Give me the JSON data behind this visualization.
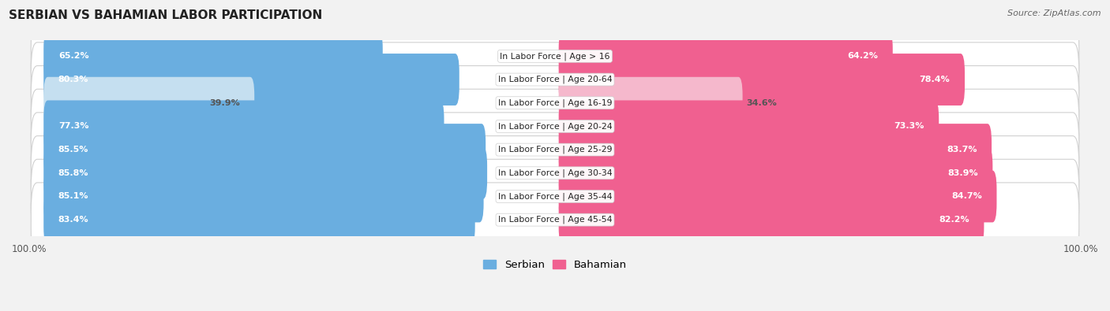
{
  "title": "SERBIAN VS BAHAMIAN LABOR PARTICIPATION",
  "source": "Source: ZipAtlas.com",
  "categories": [
    "In Labor Force | Age > 16",
    "In Labor Force | Age 20-64",
    "In Labor Force | Age 16-19",
    "In Labor Force | Age 20-24",
    "In Labor Force | Age 25-29",
    "In Labor Force | Age 30-34",
    "In Labor Force | Age 35-44",
    "In Labor Force | Age 45-54"
  ],
  "serbian_values": [
    65.2,
    80.3,
    39.9,
    77.3,
    85.5,
    85.8,
    85.1,
    83.4
  ],
  "bahamian_values": [
    64.2,
    78.4,
    34.6,
    73.3,
    83.7,
    83.9,
    84.7,
    82.2
  ],
  "serbian_color": "#6aaee0",
  "serbian_light_color": "#c5dff0",
  "bahamian_color": "#f06090",
  "bahamian_light_color": "#f5b8cc",
  "bg_color": "#f2f2f2",
  "row_bg_light": "#ffffff",
  "row_border_color": "#d0d0d0",
  "max_value": 100.0,
  "bar_height": 0.62,
  "legend_serbian": "Serbian",
  "legend_bahamian": "Bahamian",
  "title_fontsize": 11,
  "source_fontsize": 8,
  "bar_label_fontsize": 8,
  "cat_label_fontsize": 7.8
}
